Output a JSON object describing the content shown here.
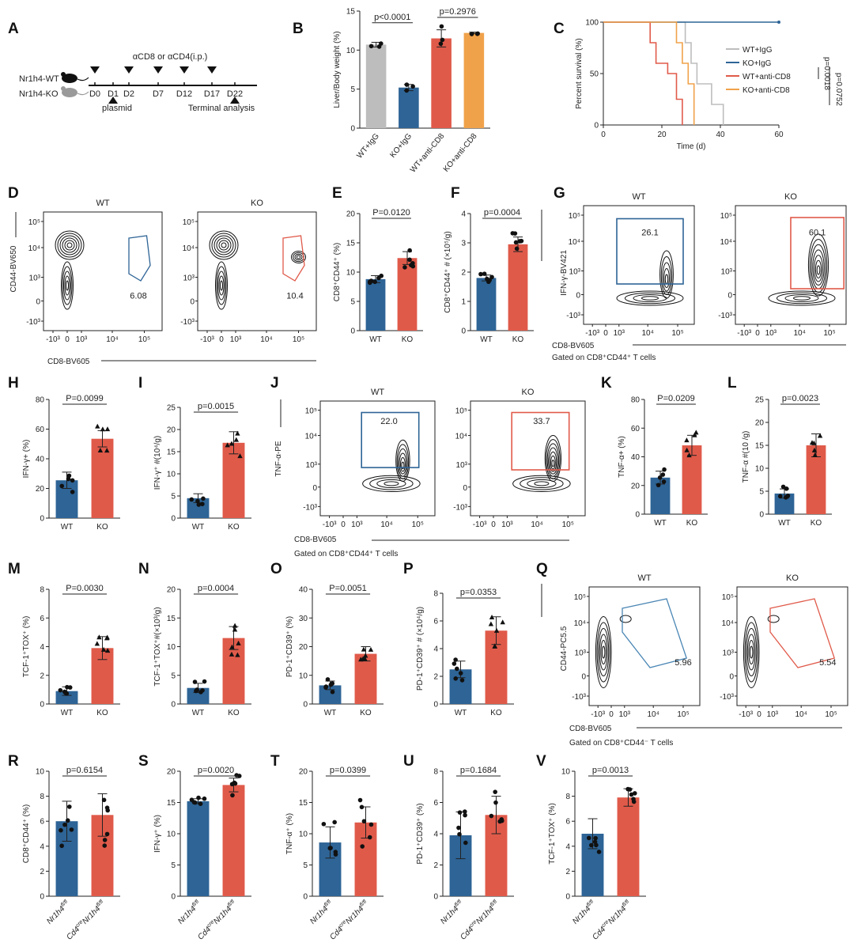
{
  "colors": {
    "wt": "#2e6496",
    "ko": "#e05a4a",
    "gray": "#bdbdbd",
    "orange": "#f0a24a",
    "black": "#222222"
  },
  "panel_labels": [
    "A",
    "B",
    "C",
    "D",
    "E",
    "F",
    "G",
    "H",
    "I",
    "J",
    "K",
    "L",
    "M",
    "N",
    "O",
    "P",
    "Q",
    "R",
    "S",
    "T",
    "U",
    "V"
  ],
  "schematic": {
    "top_label": "αCD8 or αCD4(i.p.)",
    "mouse_wt": "Nr1h4-WT",
    "mouse_ko": "Nr1h4-KO",
    "days": [
      "D0",
      "D1",
      "D2",
      "D7",
      "D12",
      "D17",
      "D22"
    ],
    "plasmid": "plasmid",
    "terminal": "Terminal analysis"
  },
  "flow": {
    "D": {
      "wt": "WT",
      "ko": "KO",
      "wt_gate": "6.08",
      "ko_gate": "10.4",
      "ylabel": "CD44-BV650",
      "xlabel": "CD8-BV605"
    },
    "G": {
      "wt": "WT",
      "ko": "KO",
      "wt_gate": "26.1",
      "ko_gate": "60.1",
      "ylabel": "IFN-γ-BV421",
      "xlabel": "CD8-BV605",
      "note": "Gated on CD8⁺CD44⁺ T cells"
    },
    "J": {
      "wt": "WT",
      "ko": "KO",
      "wt_gate": "22.0",
      "ko_gate": "33.7",
      "ylabel": "TNF-α-PE",
      "xlabel": "CD8-BV605",
      "note": "Gated on CD8⁺CD44⁺ T cells"
    },
    "Q": {
      "wt": "WT",
      "ko": "KO",
      "wt_gate": "5.96",
      "ko_gate": "5.54",
      "ylabel": "CD44-PC5.5",
      "xlabel": "CD8-BV605",
      "note": "Gated on CD8⁺CD44⁻ T cells"
    }
  },
  "chart_data": [
    {
      "panel": "B",
      "type": "bar",
      "categories": [
        "WT+IgG",
        "KO+IgG",
        "WT+anti-CD8",
        "KO+anti-CD8"
      ],
      "values": [
        10.7,
        5.2,
        11.5,
        12.2
      ],
      "errors": [
        0.3,
        0.4,
        1.1,
        0.1
      ],
      "ylabel": "Liver/Body weight (%)",
      "ylim": [
        0,
        15
      ],
      "yticks": [
        0,
        5,
        10,
        15
      ],
      "comparisons": [
        {
          "from": 0,
          "to": 1,
          "label": "p<0.0001"
        },
        {
          "from": 2,
          "to": 3,
          "label": "p=0.2976"
        }
      ]
    },
    {
      "panel": "C",
      "type": "line",
      "xlabel": "Time (d)",
      "ylabel": "Percent survival (%)",
      "xlim": [
        0,
        60
      ],
      "ylim": [
        0,
        100
      ],
      "xticks": [
        0,
        20,
        40,
        60
      ],
      "yticks": [
        0,
        50,
        100
      ],
      "series": [
        {
          "name": "WT+IgG",
          "points": [
            [
              0,
              100
            ],
            [
              28,
              100
            ],
            [
              28,
              80
            ],
            [
              30,
              80
            ],
            [
              30,
              60
            ],
            [
              32,
              60
            ],
            [
              32,
              40
            ],
            [
              37,
              40
            ],
            [
              37,
              20
            ],
            [
              41,
              20
            ],
            [
              41,
              0
            ]
          ]
        },
        {
          "name": "KO+IgG",
          "points": [
            [
              0,
              100
            ],
            [
              60,
              100
            ]
          ]
        },
        {
          "name": "WT+anti-CD8",
          "points": [
            [
              0,
              100
            ],
            [
              16,
              100
            ],
            [
              16,
              80
            ],
            [
              18,
              80
            ],
            [
              18,
              60
            ],
            [
              22,
              60
            ],
            [
              22,
              50
            ],
            [
              25,
              50
            ],
            [
              25,
              25
            ],
            [
              27,
              25
            ],
            [
              27,
              0
            ]
          ]
        },
        {
          "name": "KO+anti-CD8",
          "points": [
            [
              0,
              100
            ],
            [
              25,
              100
            ],
            [
              25,
              80
            ],
            [
              27,
              80
            ],
            [
              27,
              60
            ],
            [
              29,
              60
            ],
            [
              29,
              40
            ],
            [
              31,
              40
            ],
            [
              31,
              0
            ]
          ]
        }
      ],
      "annotations": [
        "p=0.0018",
        "p=0.0752"
      ]
    },
    {
      "panel": "E",
      "type": "bar",
      "categories": [
        "WT",
        "KO"
      ],
      "values": [
        8.8,
        12.4
      ],
      "errors": [
        0.6,
        1.1
      ],
      "ylabel": "CD8⁺CD44⁺ (%)",
      "ylim": [
        0,
        20
      ],
      "yticks": [
        0,
        5,
        10,
        15,
        20
      ],
      "comparisons": [
        {
          "from": 0,
          "to": 1,
          "label": "P=0.0120"
        }
      ]
    },
    {
      "panel": "F",
      "type": "bar",
      "categories": [
        "WT",
        "KO"
      ],
      "values": [
        1.8,
        2.95
      ],
      "errors": [
        0.1,
        0.25
      ],
      "ylabel": "CD8⁺CD44⁺ # (×10⁵/g)",
      "ylim": [
        0,
        4
      ],
      "yticks": [
        0,
        1,
        2,
        3,
        4
      ],
      "comparisons": [
        {
          "from": 0,
          "to": 1,
          "label": "p=0.0004"
        }
      ]
    },
    {
      "panel": "H",
      "type": "bar",
      "categories": [
        "WT",
        "KO"
      ],
      "values": [
        25.5,
        53.5
      ],
      "errors": [
        5.5,
        5.5
      ],
      "ylabel": "IFN-γ+ (%)",
      "ylim": [
        0,
        80
      ],
      "yticks": [
        0,
        20,
        40,
        60,
        80
      ],
      "comparisons": [
        {
          "from": 0,
          "to": 1,
          "label": "P=0.0099"
        }
      ]
    },
    {
      "panel": "I",
      "type": "bar",
      "categories": [
        "WT",
        "KO"
      ],
      "values": [
        4.5,
        17
      ],
      "errors": [
        1.0,
        2.5
      ],
      "ylabel": "IFN-γ⁺ #(10⁴/g)",
      "ylim": [
        0,
        25
      ],
      "yticks": [
        0,
        5,
        10,
        15,
        20,
        25
      ],
      "comparisons": [
        {
          "from": 0,
          "to": 1,
          "label": "p=0.0015"
        }
      ]
    },
    {
      "panel": "K",
      "type": "bar",
      "categories": [
        "WT",
        "KO"
      ],
      "values": [
        25.5,
        48
      ],
      "errors": [
        4.5,
        7
      ],
      "ylabel": "TNF-α+ (%)",
      "ylim": [
        0,
        80
      ],
      "yticks": [
        0,
        20,
        40,
        60,
        80
      ],
      "comparisons": [
        {
          "from": 0,
          "to": 1,
          "label": "P=0.0209"
        }
      ]
    },
    {
      "panel": "L",
      "type": "bar",
      "categories": [
        "WT",
        "KO"
      ],
      "values": [
        4.5,
        15
      ],
      "errors": [
        1.0,
        2.5
      ],
      "ylabel": "TNF-α #(10 /g)",
      "ylim": [
        0,
        25
      ],
      "yticks": [
        0,
        5,
        10,
        15,
        20,
        25
      ],
      "comparisons": [
        {
          "from": 0,
          "to": 1,
          "label": "p=0.0023"
        }
      ]
    },
    {
      "panel": "M",
      "type": "bar",
      "categories": [
        "WT",
        "KO"
      ],
      "values": [
        0.9,
        3.9
      ],
      "errors": [
        0.3,
        0.8
      ],
      "ylabel": "TCF-1⁺TOX⁺ (%)",
      "ylim": [
        0,
        8
      ],
      "yticks": [
        0,
        2,
        4,
        6,
        8
      ],
      "comparisons": [
        {
          "from": 0,
          "to": 1,
          "label": "P=0.0030"
        }
      ]
    },
    {
      "panel": "N",
      "type": "bar",
      "categories": [
        "WT",
        "KO"
      ],
      "values": [
        2.8,
        11.5
      ],
      "errors": [
        0.8,
        2
      ],
      "ylabel": "TCF-1⁺TOX⁺#(×10³/g)",
      "ylim": [
        0,
        20
      ],
      "yticks": [
        0,
        5,
        10,
        15,
        20
      ],
      "comparisons": [
        {
          "from": 0,
          "to": 1,
          "label": "p=0.0004"
        }
      ]
    },
    {
      "panel": "O",
      "type": "bar",
      "categories": [
        "WT",
        "KO"
      ],
      "values": [
        6.5,
        17.5
      ],
      "errors": [
        1.5,
        2.5
      ],
      "ylabel": "PD-1⁺CD39⁺ (%)",
      "ylim": [
        0,
        40
      ],
      "yticks": [
        0,
        10,
        20,
        30,
        40
      ],
      "comparisons": [
        {
          "from": 0,
          "to": 1,
          "label": "P=0.0051"
        }
      ]
    },
    {
      "panel": "P",
      "type": "bar",
      "categories": [
        "WT",
        "KO"
      ],
      "values": [
        2.5,
        5.3
      ],
      "errors": [
        0.6,
        1
      ],
      "ylabel": "PD-1⁺CD39⁺ # (×10⁴/g)",
      "ylim": [
        0,
        8
      ],
      "yticks": [
        0,
        2,
        4,
        6,
        8
      ],
      "comparisons": [
        {
          "from": 0,
          "to": 1,
          "label": "p=0.0353"
        }
      ]
    },
    {
      "panel": "R",
      "type": "bar",
      "categories": [
        "Nr1h4fl/fl",
        "Cd4creNr1h4fl/fl"
      ],
      "values": [
        6.0,
        6.5
      ],
      "errors": [
        1.6,
        1.7
      ],
      "ylabel": "CD8⁺CD44⁺ (%)",
      "ylim": [
        0,
        10
      ],
      "yticks": [
        0,
        2,
        4,
        6,
        8,
        10
      ],
      "comparisons": [
        {
          "from": 0,
          "to": 1,
          "label": "p=0.6154"
        }
      ]
    },
    {
      "panel": "S",
      "type": "bar",
      "categories": [
        "Nr1h4fl/fl",
        "Cd4creNr1h4fl/fl"
      ],
      "values": [
        15.2,
        17.8
      ],
      "errors": [
        0.4,
        1.1
      ],
      "ylabel": "IFN-γ⁺ (%)",
      "ylim": [
        0,
        20
      ],
      "yticks": [
        0,
        5,
        10,
        15,
        20
      ],
      "comparisons": [
        {
          "from": 0,
          "to": 1,
          "label": "p=0.0020"
        }
      ]
    },
    {
      "panel": "T",
      "type": "bar",
      "categories": [
        "Nr1h4fl/fl",
        "Cd4creNr1h4fl/fl"
      ],
      "values": [
        8.6,
        11.8
      ],
      "errors": [
        2.5,
        2.5
      ],
      "ylabel": "TNF-α⁺ (%)",
      "ylim": [
        0,
        20
      ],
      "yticks": [
        0,
        5,
        10,
        15,
        20
      ],
      "comparisons": [
        {
          "from": 0,
          "to": 1,
          "label": "p=0.0399"
        }
      ]
    },
    {
      "panel": "U",
      "type": "bar",
      "categories": [
        "Nr1h4fl/fl",
        "Cd4creNr1h4fl/fl"
      ],
      "values": [
        3.9,
        5.2
      ],
      "errors": [
        1.5,
        1.2
      ],
      "ylabel": "PD-1⁺CD39⁺ (%)",
      "ylim": [
        0,
        8
      ],
      "yticks": [
        0,
        2,
        4,
        6,
        8
      ],
      "comparisons": [
        {
          "from": 0,
          "to": 1,
          "label": "p=0.1684"
        }
      ]
    },
    {
      "panel": "V",
      "type": "bar",
      "categories": [
        "Nr1h4fl/fl",
        "Cd4creNr1h4fl/fl"
      ],
      "values": [
        5.0,
        7.9
      ],
      "errors": [
        1.2,
        0.7
      ],
      "ylabel": "TCF-1⁺TOX⁺ (%)",
      "ylim": [
        0,
        10
      ],
      "yticks": [
        0,
        2,
        4,
        6,
        8,
        10
      ],
      "comparisons": [
        {
          "from": 0,
          "to": 1,
          "label": "p=0.0013"
        }
      ]
    }
  ]
}
